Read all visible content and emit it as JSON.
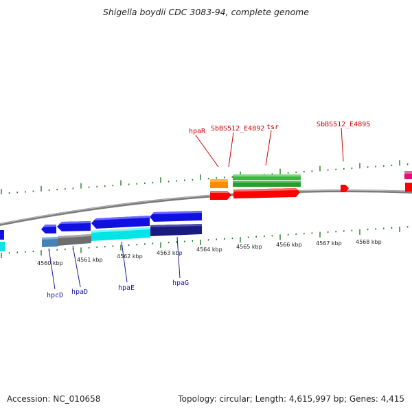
{
  "title": "Shigella boydii CDC 3083-94, complete genome",
  "footer": {
    "accession": "Accession: NC_010658",
    "summary": "Topology: circular; Length: 4,615,997 bp; Genes: 4,415"
  },
  "axis_labels": [
    "4560 kbp",
    "4561 kbp",
    "4562 kbp",
    "4563 kbp",
    "4564 kbp",
    "4565 kbp",
    "4566 kbp",
    "4567 kbp",
    "4568 kbp"
  ],
  "gene_labels_top": [
    {
      "text": "hpaR",
      "color": "#cc0000"
    },
    {
      "text": "SbBS512_E4892",
      "color": "#cc0000"
    },
    {
      "text": "tsr",
      "color": "#cc0000"
    },
    {
      "text": "SbBS512_E4895",
      "color": "#cc0000"
    }
  ],
  "gene_labels_bottom": [
    {
      "text": "hpcD",
      "color": "#1a1aa0"
    },
    {
      "text": "hpaD",
      "color": "#1a1aa0"
    },
    {
      "text": "hpaE",
      "color": "#1a1aa0"
    },
    {
      "text": "hpaG",
      "color": "#1a1aa0"
    }
  ],
  "colors": {
    "backbone": "#808080",
    "tick": "#1e7a1e",
    "forward_gene": "#ff0000",
    "reverse_gene": "#1010e0",
    "top_gene_orange": "#ff8c00",
    "top_gene_green": "#3cb83c",
    "bottom_gene_steel": "#4682b4",
    "bottom_gene_gray": "#6e6e6e",
    "bottom_gene_cyan": "#00e5e5",
    "bottom_gene_navy": "#1a1a80",
    "edge_magenta": "#e0107a"
  }
}
